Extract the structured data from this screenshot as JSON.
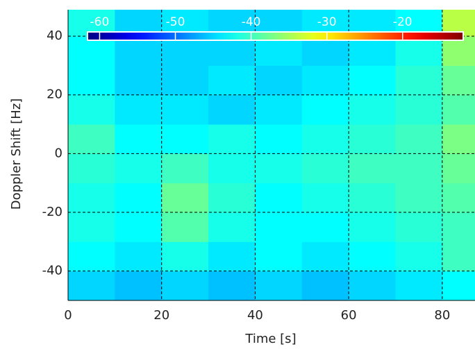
{
  "chart_data": {
    "type": "heatmap",
    "xlabel": "Time [s]",
    "ylabel": "Doppler Shift [Hz]",
    "xlim": [
      0,
      87
    ],
    "ylim": [
      -50,
      49
    ],
    "xticks": [
      0,
      20,
      40,
      60,
      80
    ],
    "yticks": [
      -40,
      -20,
      0,
      20,
      40
    ],
    "grid": true,
    "colormap": "jet",
    "xbins": [
      0,
      10,
      20,
      30,
      40,
      50,
      60,
      70,
      80,
      87
    ],
    "ybins": [
      -50,
      -40,
      -30,
      -20,
      -10,
      0,
      10,
      20,
      30,
      40,
      49
    ],
    "z": [
      [
        -45,
        -46,
        -45,
        -46,
        -45,
        -46,
        -45,
        -44,
        -43
      ],
      [
        -43,
        -44,
        -42,
        -44,
        -43,
        -44,
        -43,
        -42,
        -40
      ],
      [
        -42,
        -43,
        -39,
        -42,
        -43,
        -43,
        -42,
        -41,
        -40
      ],
      [
        -42,
        -43,
        -38,
        -41,
        -43,
        -42,
        -41,
        -40,
        -39
      ],
      [
        -41,
        -42,
        -40,
        -42,
        -42,
        -41,
        -40,
        -40,
        -38
      ],
      [
        -40,
        -43,
        -43,
        -42,
        -43,
        -42,
        -41,
        -40,
        -37
      ],
      [
        -42,
        -44,
        -44,
        -45,
        -44,
        -43,
        -42,
        -41,
        -39
      ],
      [
        -43,
        -45,
        -45,
        -44,
        -45,
        -44,
        -43,
        -41,
        -38
      ],
      [
        -43,
        -45,
        -45,
        -45,
        -44,
        -45,
        -44,
        -42,
        -36
      ],
      [
        -42,
        -45,
        -44,
        -45,
        -45,
        -44,
        -44,
        -43,
        -34
      ]
    ],
    "clim": [
      -61.6,
      -12
    ],
    "colorbar_ticks": [
      -60,
      -50,
      -40,
      -30,
      -20
    ]
  }
}
